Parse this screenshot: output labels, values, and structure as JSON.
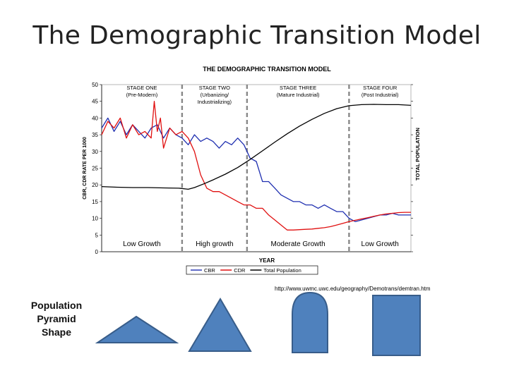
{
  "slide": {
    "title": "The Demographic Transition Model",
    "source_url": "http://www.uwmc.uwc.edu/geography/Demotrans/demtran.htm",
    "pyramid_label": "Population Pyramid Shape",
    "pyramid_shapes": [
      "wide-triangle-icon",
      "triangle-icon",
      "arch-icon",
      "rectangle-icon"
    ]
  },
  "chart_data": {
    "type": "line",
    "title": "THE DEMOGRAPHIC TRANSITION MODEL",
    "xlabel": "YEAR",
    "ylabel": "CBR, CDR RATE PER 1000",
    "y2label": "TOTAL POPULATION",
    "ylim": [
      0,
      50
    ],
    "yticks": [
      0,
      5,
      10,
      15,
      20,
      25,
      30,
      35,
      40,
      45,
      50
    ],
    "xlim": [
      0,
      100
    ],
    "colors": {
      "cbr": "#1f2fb0",
      "cdr": "#e01010",
      "pop": "#000000"
    },
    "stage_boundaries": [
      26,
      47,
      80
    ],
    "stages": [
      {
        "name": "STAGE ONE",
        "sub": "(Pre-Modern)",
        "x": 13,
        "growth": "Low Growth"
      },
      {
        "name": "STAGE TWO",
        "sub": "(Urbanizing/ Industrializing)",
        "x": 36.5,
        "growth": "High growth"
      },
      {
        "name": "STAGE THREE",
        "sub": "(Mature Industrial)",
        "x": 63.5,
        "growth": "Moderate Growth"
      },
      {
        "name": "STAGE FOUR",
        "sub": "(Post Industrial)",
        "x": 90,
        "growth": "Low Growth"
      }
    ],
    "series": [
      {
        "name": "CBR",
        "x": [
          0,
          2,
          4,
          6,
          8,
          10,
          12,
          14,
          16,
          18,
          20,
          22,
          24,
          26,
          28,
          30,
          32,
          34,
          36,
          38,
          40,
          42,
          44,
          46,
          48,
          50,
          52,
          54,
          56,
          58,
          60,
          62,
          64,
          66,
          68,
          70,
          72,
          74,
          76,
          78,
          80,
          82,
          84,
          86,
          88,
          90,
          92,
          94,
          96,
          98,
          100
        ],
        "values": [
          37,
          40,
          36,
          39,
          35,
          38,
          36,
          34,
          37,
          38,
          34,
          37,
          35,
          34,
          32,
          35,
          33,
          34,
          33,
          31,
          33,
          32,
          34,
          32,
          28,
          27,
          21,
          21,
          19,
          17,
          16,
          15,
          15,
          14,
          14,
          13,
          14,
          13,
          12,
          12,
          10,
          9,
          9.5,
          10,
          10.5,
          11,
          11,
          11.5,
          11,
          11,
          11
        ]
      },
      {
        "name": "CDR",
        "x": [
          0,
          2,
          4,
          6,
          8,
          10,
          12,
          14,
          16,
          17,
          18,
          19,
          20,
          22,
          24,
          26,
          28,
          30,
          32,
          34,
          36,
          38,
          40,
          42,
          44,
          46,
          48,
          50,
          52,
          54,
          56,
          58,
          60,
          62,
          64,
          66,
          68,
          70,
          72,
          74,
          76,
          78,
          80,
          82,
          84,
          86,
          88,
          90,
          92,
          94,
          96,
          98,
          100
        ],
        "values": [
          35,
          39,
          37,
          40,
          34,
          38,
          35,
          36,
          34,
          45,
          36,
          40,
          31,
          37,
          35,
          36,
          34,
          30,
          23,
          19,
          18,
          18,
          17,
          16,
          15,
          14,
          14,
          13,
          13,
          11,
          9.5,
          8,
          6.5,
          6.5,
          6.6,
          6.7,
          6.8,
          7,
          7.2,
          7.5,
          8,
          8.5,
          9,
          9.4,
          9.8,
          10.2,
          10.6,
          11,
          11.3,
          11.5,
          11.7,
          11.8,
          11.8
        ]
      },
      {
        "name": "Total Population",
        "x": [
          0,
          5,
          10,
          15,
          20,
          25,
          28,
          30,
          33,
          36,
          40,
          44,
          48,
          52,
          56,
          60,
          64,
          68,
          72,
          76,
          80,
          84,
          88,
          92,
          96,
          100
        ],
        "values": [
          19.5,
          19.3,
          19.2,
          19.2,
          19.1,
          19,
          18.7,
          19.2,
          20.3,
          21.5,
          23.2,
          25.2,
          27.6,
          30.2,
          32.8,
          35.3,
          37.6,
          39.6,
          41.4,
          42.8,
          43.7,
          44,
          44.1,
          44,
          44,
          43.8
        ]
      }
    ]
  }
}
